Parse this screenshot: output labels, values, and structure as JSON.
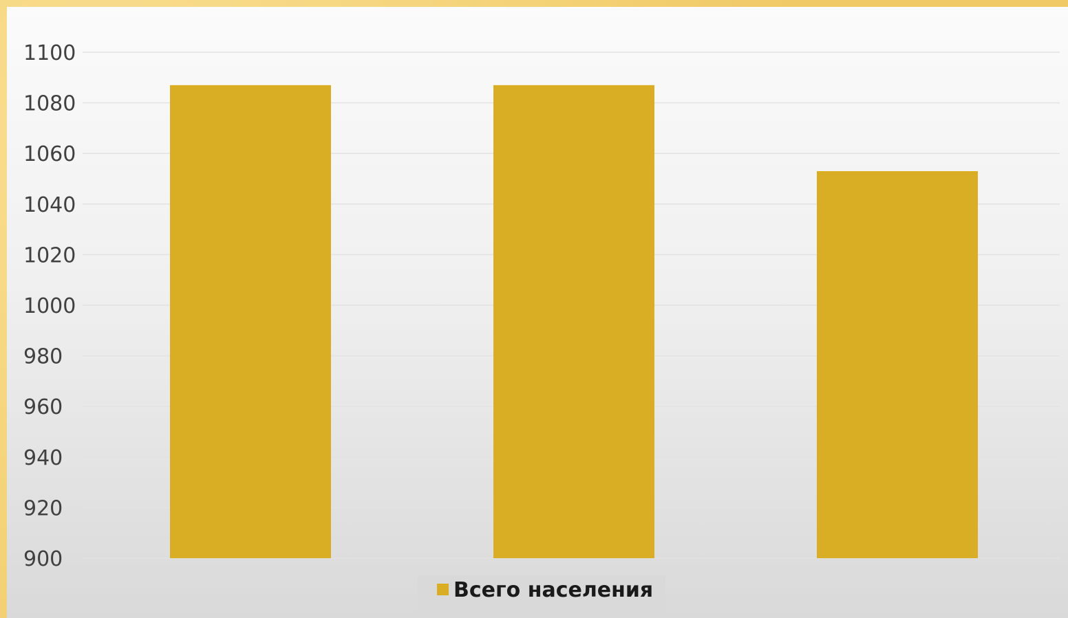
{
  "chart_data": {
    "type": "bar",
    "categories": [
      "",
      "",
      ""
    ],
    "series": [
      {
        "name": "Всего населения",
        "values": [
          1087,
          1087,
          1053
        ]
      }
    ],
    "ylim": [
      900,
      1100
    ],
    "yticks": [
      "1100",
      "1080",
      "1060",
      "1040",
      "1020",
      "1000",
      "980",
      "960",
      "940",
      "920",
      "900"
    ],
    "grid": true,
    "legend_position": "bottom",
    "colors": {
      "bar": "#d9ae25",
      "background_top": "#fbfbfb",
      "background_bottom": "#d9d9d9",
      "border": "#f1cc6b"
    }
  }
}
